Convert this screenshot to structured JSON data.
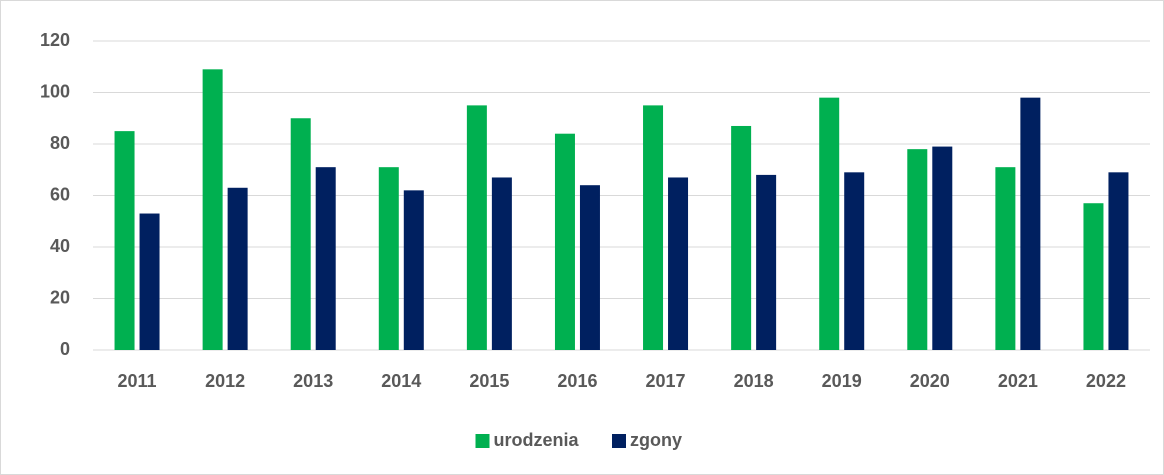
{
  "chart_data": {
    "type": "bar",
    "categories": [
      "2011",
      "2012",
      "2013",
      "2014",
      "2015",
      "2016",
      "2017",
      "2018",
      "2019",
      "2020",
      "2021",
      "2022"
    ],
    "series": [
      {
        "name": "urodzenia",
        "color": "#00b050",
        "values": [
          85,
          109,
          90,
          71,
          95,
          84,
          95,
          87,
          98,
          78,
          71,
          57
        ]
      },
      {
        "name": "zgony",
        "color": "#002060",
        "values": [
          53,
          63,
          71,
          62,
          67,
          64,
          67,
          68,
          69,
          79,
          98,
          69
        ]
      }
    ],
    "ylim": [
      0,
      120
    ],
    "yticks": [
      0,
      20,
      40,
      60,
      80,
      100,
      120
    ],
    "grid": true,
    "legend": "bottom"
  }
}
